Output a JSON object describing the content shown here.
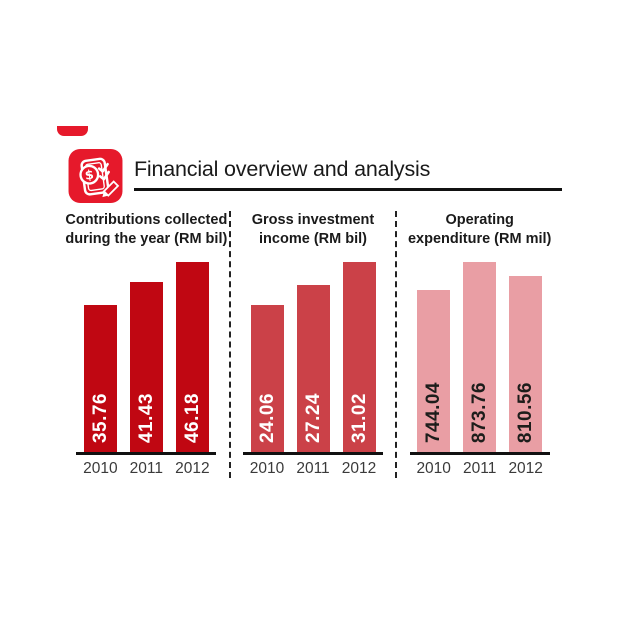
{
  "header": {
    "title": "Financial overview and analysis"
  },
  "icons": {
    "header_icon": "money-clipboard-pencil-icon"
  },
  "colors": {
    "icon_red": "#e6192b",
    "rule_black": "#111111",
    "divider_black": "#222222",
    "year_label_gray": "#3a3a3a",
    "panel1_bar": "#c00712",
    "panel2_bar": "#cb4148",
    "panel3_bar": "#e99ea4"
  },
  "chart_data": [
    {
      "type": "bar",
      "title": "Contributions collected during the year (RM bil)",
      "title_lines": [
        "Contributions collected",
        "during the year (RM bil)"
      ],
      "categories": [
        "2010",
        "2011",
        "2012"
      ],
      "values": [
        35.76,
        41.43,
        46.18
      ],
      "value_labels": [
        "35.76",
        "41.43",
        "46.18"
      ],
      "bar_color": "#c00712",
      "value_label_color": "#ffffff",
      "ylim": [
        0,
        46.18
      ],
      "grid": false,
      "legend": false,
      "value_label_orientation": "vertical-bottom-inside"
    },
    {
      "type": "bar",
      "title": "Gross investment income (RM bil)",
      "title_lines": [
        "Gross investment",
        "income (RM bil)"
      ],
      "categories": [
        "2010",
        "2011",
        "2012"
      ],
      "values": [
        24.06,
        27.24,
        31.02
      ],
      "value_labels": [
        "24.06",
        "27.24",
        "31.02"
      ],
      "bar_color": "#cb4148",
      "value_label_color": "#ffffff",
      "ylim": [
        0,
        31.02
      ],
      "grid": false,
      "legend": false,
      "value_label_orientation": "vertical-bottom-inside"
    },
    {
      "type": "bar",
      "title": "Operating expenditure (RM mil)",
      "title_lines": [
        "Operating",
        "expenditure (RM mil)"
      ],
      "categories": [
        "2010",
        "2011",
        "2012"
      ],
      "values": [
        744.04,
        873.76,
        810.56
      ],
      "value_labels": [
        "744.04",
        "873.76",
        "810.56"
      ],
      "bar_color": "#e99ea4",
      "value_label_color": "#1d1d1b",
      "ylim": [
        0,
        873.76
      ],
      "grid": false,
      "legend": false,
      "value_label_orientation": "vertical-bottom-inside"
    }
  ]
}
